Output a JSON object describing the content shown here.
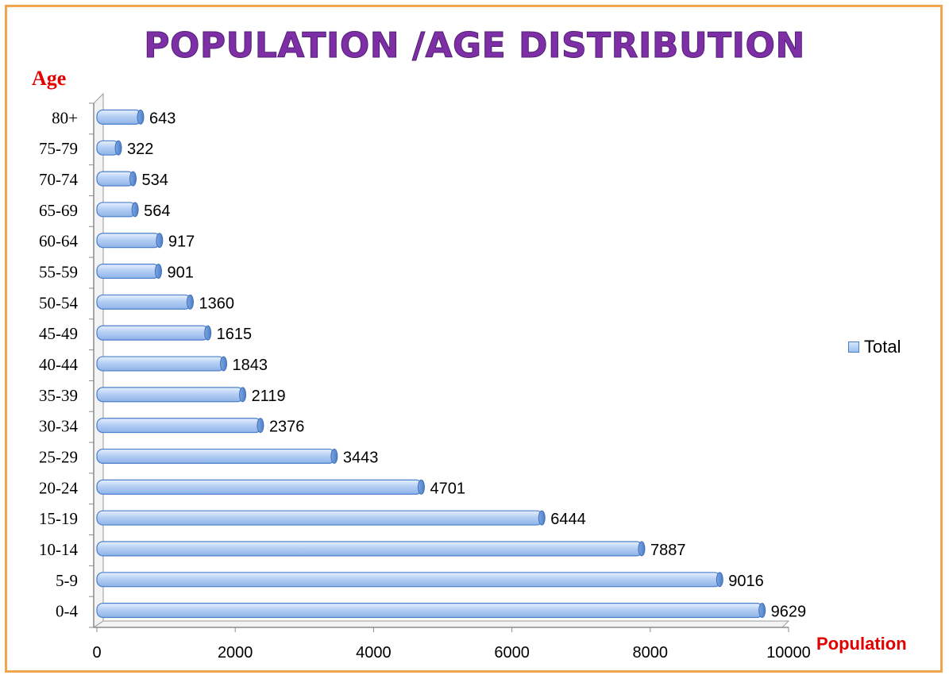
{
  "chart_data": {
    "type": "bar",
    "orientation": "horizontal",
    "title": "POPULATION /AGE DISTRIBUTION",
    "ylabel": "Age",
    "xlabel": "Population",
    "categories": [
      "0-4",
      "5-9",
      "10-14",
      "15-19",
      "20-24",
      "25-29",
      "30-34",
      "35-39",
      "40-44",
      "45-49",
      "50-54",
      "55-59",
      "60-64",
      "65-69",
      "70-74",
      "75-79",
      "80+"
    ],
    "series": [
      {
        "name": "Total",
        "values": [
          9629,
          9016,
          7887,
          6444,
          4701,
          3443,
          2376,
          2119,
          1843,
          1615,
          1360,
          901,
          917,
          564,
          534,
          322,
          643
        ]
      }
    ],
    "xlim": [
      0,
      10000
    ],
    "xticks": [
      0,
      2000,
      4000,
      6000,
      8000,
      10000
    ],
    "grid": false,
    "legend_position": "right",
    "colors": {
      "bar_fill": "#a9c8f2",
      "bar_edge": "#4a7fcb",
      "title": "#7f2fa6",
      "axis_title": "#e30000",
      "border": "#f1a64b"
    }
  }
}
